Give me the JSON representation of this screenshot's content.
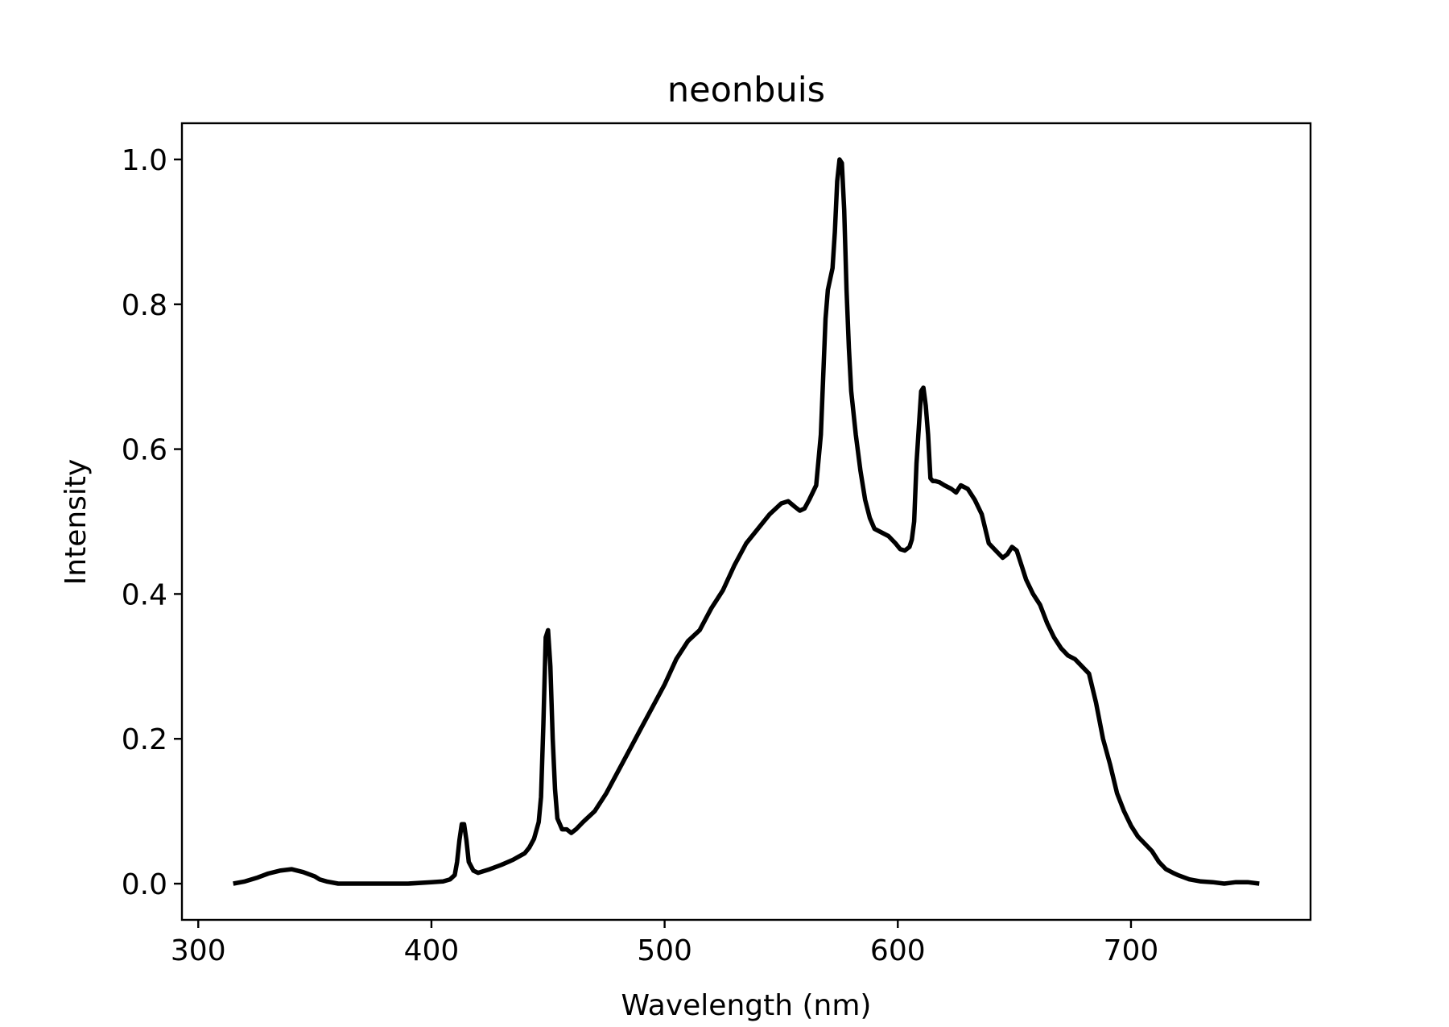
{
  "chart_data": {
    "type": "line",
    "title": "neonbuis",
    "xlabel": "Wavelength (nm)",
    "ylabel": "Intensity",
    "xlim": [
      293,
      777
    ],
    "ylim": [
      -0.05,
      1.05
    ],
    "xticks": [
      300,
      400,
      500,
      600,
      700
    ],
    "xtick_labels": [
      "300",
      "400",
      "500",
      "600",
      "700"
    ],
    "yticks": [
      0.0,
      0.2,
      0.4,
      0.6,
      0.8,
      1.0
    ],
    "ytick_labels": [
      "0.0",
      "0.2",
      "0.4",
      "0.6",
      "0.8",
      "1.0"
    ],
    "grid": false,
    "legend": false,
    "line_color": "#000000",
    "series": [
      {
        "x": [
          315,
          320,
          325,
          330,
          335,
          340,
          345,
          350,
          352,
          355,
          360,
          370,
          380,
          390,
          400,
          405,
          408,
          410,
          411,
          412,
          413,
          414,
          415,
          416,
          418,
          420,
          425,
          430,
          435,
          440,
          442,
          444,
          446,
          447,
          448,
          449,
          450,
          451,
          452,
          453,
          454,
          456,
          458,
          460,
          462,
          465,
          470,
          475,
          480,
          485,
          490,
          495,
          500,
          505,
          510,
          515,
          520,
          525,
          530,
          535,
          540,
          545,
          550,
          553,
          556,
          558,
          560,
          562,
          565,
          567,
          568,
          569,
          570,
          571,
          572,
          573,
          574,
          575,
          576,
          577,
          578,
          579,
          580,
          582,
          584,
          586,
          588,
          590,
          593,
          596,
          599,
          601,
          603,
          605,
          606,
          607,
          608,
          609,
          610,
          611,
          612,
          613,
          614,
          615,
          616,
          617,
          618,
          620,
          623,
          625,
          627,
          630,
          633,
          636,
          639,
          642,
          645,
          647,
          649,
          651,
          653,
          655,
          658,
          661,
          664,
          667,
          670,
          673,
          676,
          679,
          682,
          685,
          688,
          691,
          694,
          697,
          700,
          703,
          706,
          709,
          712,
          715,
          718,
          720,
          725,
          730,
          735,
          740,
          745,
          750,
          755
        ],
        "y": [
          0.0,
          0.003,
          0.008,
          0.014,
          0.018,
          0.02,
          0.016,
          0.01,
          0.006,
          0.003,
          0.0,
          0.0,
          0.0,
          0.0,
          0.002,
          0.003,
          0.006,
          0.012,
          0.03,
          0.06,
          0.082,
          0.082,
          0.06,
          0.03,
          0.018,
          0.015,
          0.02,
          0.026,
          0.033,
          0.042,
          0.05,
          0.062,
          0.085,
          0.12,
          0.22,
          0.34,
          0.35,
          0.3,
          0.2,
          0.13,
          0.09,
          0.075,
          0.075,
          0.07,
          0.075,
          0.085,
          0.1,
          0.125,
          0.155,
          0.185,
          0.215,
          0.245,
          0.275,
          0.31,
          0.335,
          0.35,
          0.38,
          0.405,
          0.44,
          0.47,
          0.49,
          0.51,
          0.525,
          0.528,
          0.52,
          0.515,
          0.518,
          0.53,
          0.55,
          0.62,
          0.7,
          0.78,
          0.82,
          0.835,
          0.85,
          0.9,
          0.97,
          1.0,
          0.995,
          0.93,
          0.82,
          0.74,
          0.68,
          0.62,
          0.57,
          0.53,
          0.505,
          0.49,
          0.485,
          0.48,
          0.47,
          0.462,
          0.46,
          0.465,
          0.475,
          0.5,
          0.58,
          0.63,
          0.68,
          0.685,
          0.66,
          0.62,
          0.56,
          0.556,
          0.556,
          0.555,
          0.554,
          0.55,
          0.545,
          0.54,
          0.55,
          0.545,
          0.53,
          0.51,
          0.47,
          0.46,
          0.45,
          0.455,
          0.465,
          0.46,
          0.44,
          0.42,
          0.4,
          0.385,
          0.36,
          0.34,
          0.325,
          0.315,
          0.31,
          0.3,
          0.29,
          0.25,
          0.2,
          0.165,
          0.125,
          0.1,
          0.08,
          0.065,
          0.055,
          0.045,
          0.03,
          0.02,
          0.015,
          0.012,
          0.006,
          0.003,
          0.002,
          0.0,
          0.002,
          0.002,
          0.0
        ]
      }
    ]
  }
}
